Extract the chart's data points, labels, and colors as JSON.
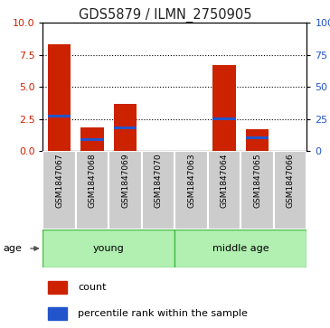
{
  "title": "GDS5879 / ILMN_2750905",
  "samples": [
    "GSM1847067",
    "GSM1847068",
    "GSM1847069",
    "GSM1847070",
    "GSM1847063",
    "GSM1847064",
    "GSM1847065",
    "GSM1847066"
  ],
  "count_values": [
    8.3,
    1.8,
    3.7,
    0.02,
    0.02,
    6.7,
    1.7,
    0.02
  ],
  "percentile_values": [
    27,
    9,
    18,
    0,
    0,
    25,
    10,
    0
  ],
  "ylim_left": [
    0,
    10
  ],
  "ylim_right": [
    0,
    100
  ],
  "yticks_left": [
    0,
    2.5,
    5.0,
    7.5,
    10
  ],
  "yticks_right": [
    0,
    25,
    50,
    75,
    100
  ],
  "groups": [
    {
      "label": "young",
      "start": 0,
      "end": 4
    },
    {
      "label": "middle age",
      "start": 4,
      "end": 8
    }
  ],
  "bar_color": "#cc2200",
  "blue_color": "#2255cc",
  "group_fill": "#b2f0b2",
  "group_edge": "#44bb44",
  "sample_box_color": "#cccccc",
  "sample_box_edge": "#aaaaaa",
  "bar_width": 0.7,
  "title_fontsize": 10.5,
  "tick_fontsize": 8,
  "legend_fontsize": 8
}
